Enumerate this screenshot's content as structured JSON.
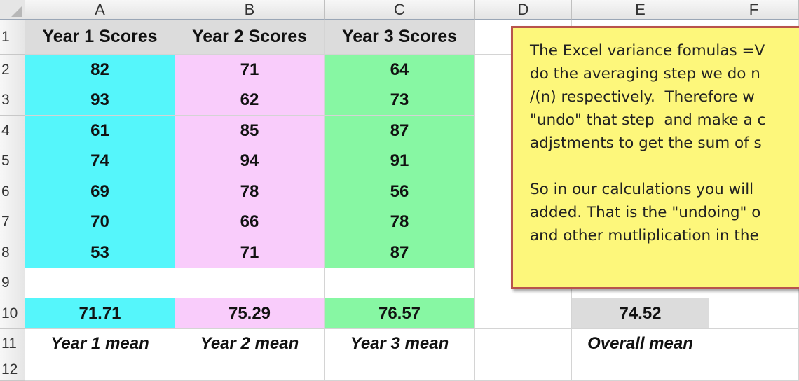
{
  "columns": [
    "A",
    "B",
    "C",
    "D",
    "E",
    "F"
  ],
  "rows": [
    "1",
    "2",
    "3",
    "4",
    "5",
    "6",
    "7",
    "8",
    "9",
    "10",
    "11",
    "12"
  ],
  "headers": {
    "year1": "Year 1 Scores",
    "year2": "Year 2 Scores",
    "year3": "Year 3 Scores"
  },
  "scores": {
    "year1": [
      "82",
      "93",
      "61",
      "74",
      "69",
      "70",
      "53"
    ],
    "year2": [
      "71",
      "62",
      "85",
      "94",
      "78",
      "66",
      "71"
    ],
    "year3": [
      "64",
      "73",
      "87",
      "91",
      "56",
      "78",
      "87"
    ]
  },
  "means": {
    "year1": "71.71",
    "year2": "75.29",
    "year3": "76.57",
    "overall": "74.52"
  },
  "mean_labels": {
    "year1": "Year 1 mean",
    "year2": "Year 2 mean",
    "year3": "Year 3 mean",
    "overall": "Overall mean"
  },
  "comment": {
    "line1": "The Excel variance fomulas =V",
    "line2": "do the averaging step we do n",
    "line3": "/(n) respectively.  Therefore w",
    "line4": "\"undo\" that step  and make a c",
    "line5": "adjstments to get the sum of s",
    "line6": "So in our calculations you will",
    "line7": "added. That is the \"undoing\" o",
    "line8": "and other mutliplication in the"
  },
  "colors": {
    "year1_fill": "#55f6fb",
    "year2_fill": "#f9ccfb",
    "year3_fill": "#87f7a3",
    "header_fill": "#dcdcdc",
    "comment_fill": "#fdf77b",
    "comment_border": "#b8544c"
  }
}
